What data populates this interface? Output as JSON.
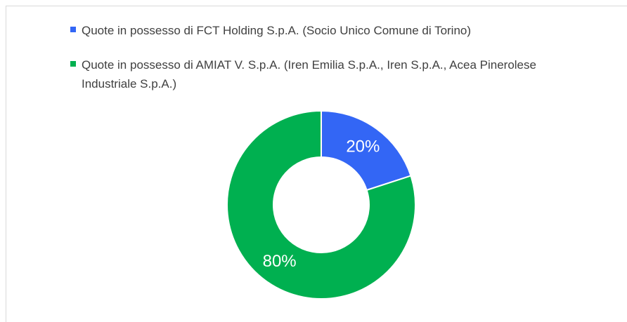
{
  "chart_data": {
    "type": "donut",
    "categories": [
      "Quote in possesso di FCT Holding S.p.A. (Socio Unico Comune di Torino)",
      "Quote in possesso di AMIAT V. S.p.A. (Iren Emilia S.p.A., Iren S.p.A., Acea Pinerolese Industriale S.p.A.)"
    ],
    "values": [
      20,
      80
    ],
    "value_labels": [
      "20%",
      "80%"
    ],
    "colors": [
      "#3366f5",
      "#00b050"
    ],
    "legend": "top"
  }
}
